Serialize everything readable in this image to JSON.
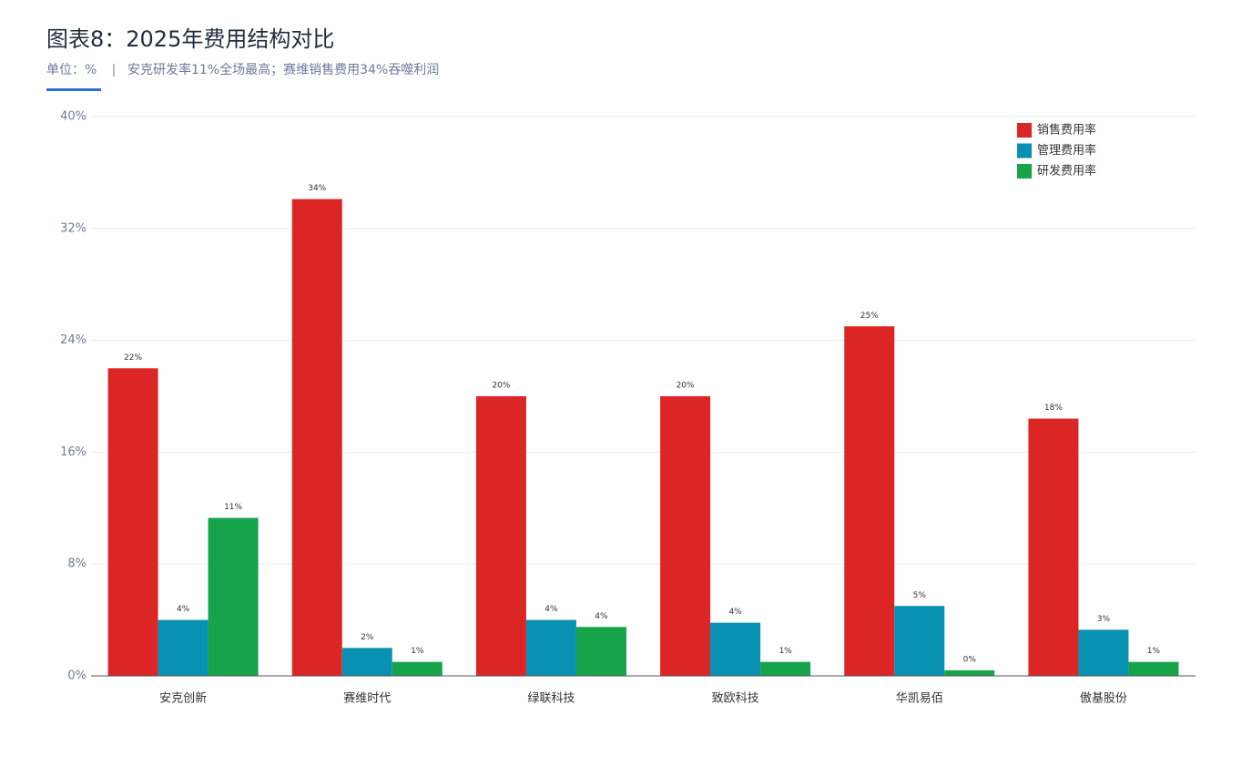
{
  "chart_data": {
    "type": "bar",
    "title": "图表8：2025年费用结构对比",
    "unit": "单位：%",
    "subtitle": "安克研发率11%全场最高；赛维销售费用34%吞噬利润",
    "categories": [
      "安克创新",
      "赛维时代",
      "绿联科技",
      "致欧科技",
      "华凯易佰",
      "傲基股份"
    ],
    "series": [
      {
        "name": "销售费用率",
        "color": "#dc2626",
        "values": [
          22.0,
          34.1,
          20.0,
          20.0,
          25.0,
          18.4
        ],
        "value_labels": [
          "22%",
          "34%",
          "20%",
          "20%",
          "25%",
          "18%"
        ]
      },
      {
        "name": "管理费用率",
        "color": "#0891b2",
        "values": [
          4.0,
          2.0,
          4.0,
          3.8,
          5.0,
          3.3
        ],
        "value_labels": [
          "4%",
          "2%",
          "4%",
          "4%",
          "5%",
          "3%"
        ]
      },
      {
        "name": "研发费用率",
        "color": "#16a34a",
        "values": [
          11.3,
          1.0,
          3.5,
          1.0,
          0.4,
          1.0
        ],
        "value_labels": [
          "11%",
          "1%",
          "4%",
          "1%",
          "0%",
          "1%"
        ]
      }
    ],
    "ylim": [
      0,
      40
    ],
    "yticks": [
      {
        "value": 0,
        "label": "0%"
      },
      {
        "value": 8,
        "label": "8%"
      },
      {
        "value": 16,
        "label": "16%"
      },
      {
        "value": 24,
        "label": "24%"
      },
      {
        "value": 32,
        "label": "32%"
      },
      {
        "value": 40,
        "label": "40%"
      }
    ],
    "grid": true,
    "legend": "top-right"
  }
}
